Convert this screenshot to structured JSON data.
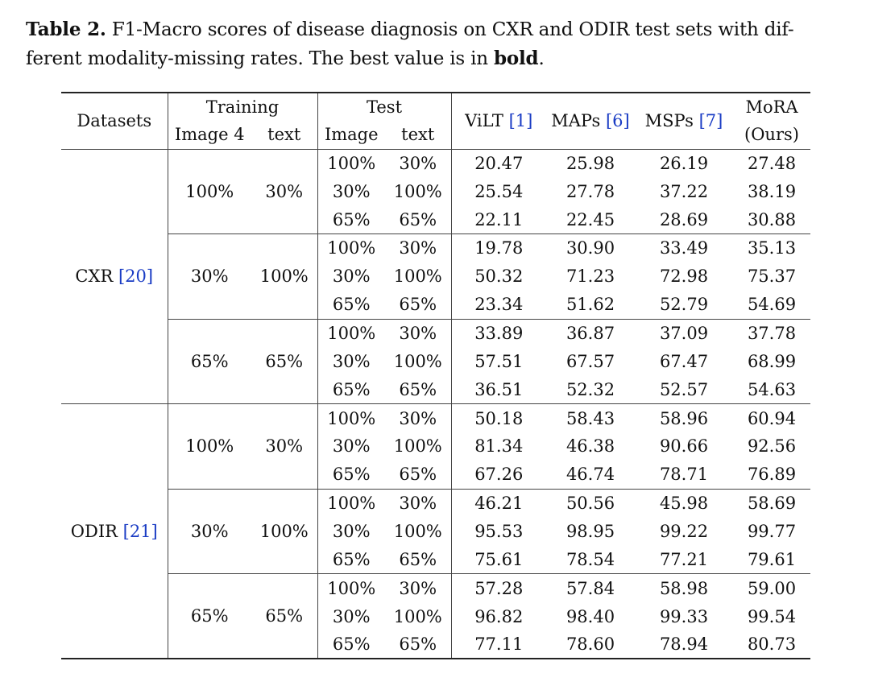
{
  "caption": {
    "label": "Table 2.",
    "line1": "F1-Macro scores of disease diagnosis on CXR and ODIR test sets with dif-",
    "line2_text": "ferent modality-missing rates. The best value is in ",
    "line2_bold": "bold",
    "line2_end": "."
  },
  "header": {
    "datasets": "Datasets",
    "training": "Training",
    "test": "Test",
    "train_image": "Image 4",
    "train_text": "text",
    "test_image": "Image",
    "test_text": "text",
    "vilt": "ViLT",
    "vilt_ref": "[1]",
    "maps": "MAPs",
    "maps_ref": "[6]",
    "msps": "MSPs",
    "msps_ref": "[7]",
    "mora_line1": "MoRA",
    "mora_line2": "(Ours)"
  },
  "datasets": [
    {
      "name": "CXR",
      "ref": "[20]",
      "groups": [
        {
          "train_image": "100%",
          "train_text": "30%",
          "rows": [
            {
              "test_image": "100%",
              "test_text": "30%",
              "vilt": "20.47",
              "maps": "25.98",
              "msps": "26.19",
              "mora": "27.48",
              "best": "mora"
            },
            {
              "test_image": "30%",
              "test_text": "100%",
              "vilt": "25.54",
              "maps": "27.78",
              "msps": "37.22",
              "mora": "38.19",
              "best": "mora"
            },
            {
              "test_image": "65%",
              "test_text": "65%",
              "vilt": "22.11",
              "maps": "22.45",
              "msps": "28.69",
              "mora": "30.88",
              "best": "mora"
            }
          ]
        },
        {
          "train_image": "30%",
          "train_text": "100%",
          "rows": [
            {
              "test_image": "100%",
              "test_text": "30%",
              "vilt": "19.78",
              "maps": "30.90",
              "msps": "33.49",
              "mora": "35.13",
              "best": "mora"
            },
            {
              "test_image": "30%",
              "test_text": "100%",
              "vilt": "50.32",
              "maps": "71.23",
              "msps": "72.98",
              "mora": "75.37",
              "best": "mora"
            },
            {
              "test_image": "65%",
              "test_text": "65%",
              "vilt": "23.34",
              "maps": "51.62",
              "msps": "52.79",
              "mora": "54.69",
              "best": "mora"
            }
          ]
        },
        {
          "train_image": "65%",
          "train_text": "65%",
          "rows": [
            {
              "test_image": "100%",
              "test_text": "30%",
              "vilt": "33.89",
              "maps": "36.87",
              "msps": "37.09",
              "mora": "37.78",
              "best": "mora"
            },
            {
              "test_image": "30%",
              "test_text": "100%",
              "vilt": "57.51",
              "maps": "67.57",
              "msps": "67.47",
              "mora": "68.99",
              "best": "mora"
            },
            {
              "test_image": "65%",
              "test_text": "65%",
              "vilt": "36.51",
              "maps": "52.32",
              "msps": "52.57",
              "mora": "54.63",
              "best": "mora"
            }
          ]
        }
      ]
    },
    {
      "name": "ODIR",
      "ref": "[21]",
      "groups": [
        {
          "train_image": "100%",
          "train_text": "30%",
          "rows": [
            {
              "test_image": "100%",
              "test_text": "30%",
              "vilt": "50.18",
              "maps": "58.43",
              "msps": "58.96",
              "mora": "60.94",
              "best": "mora"
            },
            {
              "test_image": "30%",
              "test_text": "100%",
              "vilt": "81.34",
              "maps": "46.38",
              "msps": "90.66",
              "mora": "92.56",
              "best": "mora"
            },
            {
              "test_image": "65%",
              "test_text": "65%",
              "vilt": "67.26",
              "maps": "46.74",
              "msps": "78.71",
              "mora": "76.89",
              "best": "msps"
            }
          ]
        },
        {
          "train_image": "30%",
          "train_text": "100%",
          "rows": [
            {
              "test_image": "100%",
              "test_text": "30%",
              "vilt": "46.21",
              "maps": "50.56",
              "msps": "45.98",
              "mora": "58.69",
              "best": "mora"
            },
            {
              "test_image": "30%",
              "test_text": "100%",
              "vilt": "95.53",
              "maps": "98.95",
              "msps": "99.22",
              "mora": "99.77",
              "best": "mora"
            },
            {
              "test_image": "65%",
              "test_text": "65%",
              "vilt": "75.61",
              "maps": "78.54",
              "msps": "77.21",
              "mora": "79.61",
              "best": "mora"
            }
          ]
        },
        {
          "train_image": "65%",
          "train_text": "65%",
          "rows": [
            {
              "test_image": "100%",
              "test_text": "30%",
              "vilt": "57.28",
              "maps": "57.84",
              "msps": "58.98",
              "mora": "59.00",
              "best": "mora"
            },
            {
              "test_image": "30%",
              "test_text": "100%",
              "vilt": "96.82",
              "maps": "98.40",
              "msps": "99.33",
              "mora": "99.54",
              "best": "mora"
            },
            {
              "test_image": "65%",
              "test_text": "65%",
              "vilt": "77.11",
              "maps": "78.60",
              "msps": "78.94",
              "mora": "80.73",
              "best": "mora"
            }
          ]
        }
      ]
    }
  ]
}
